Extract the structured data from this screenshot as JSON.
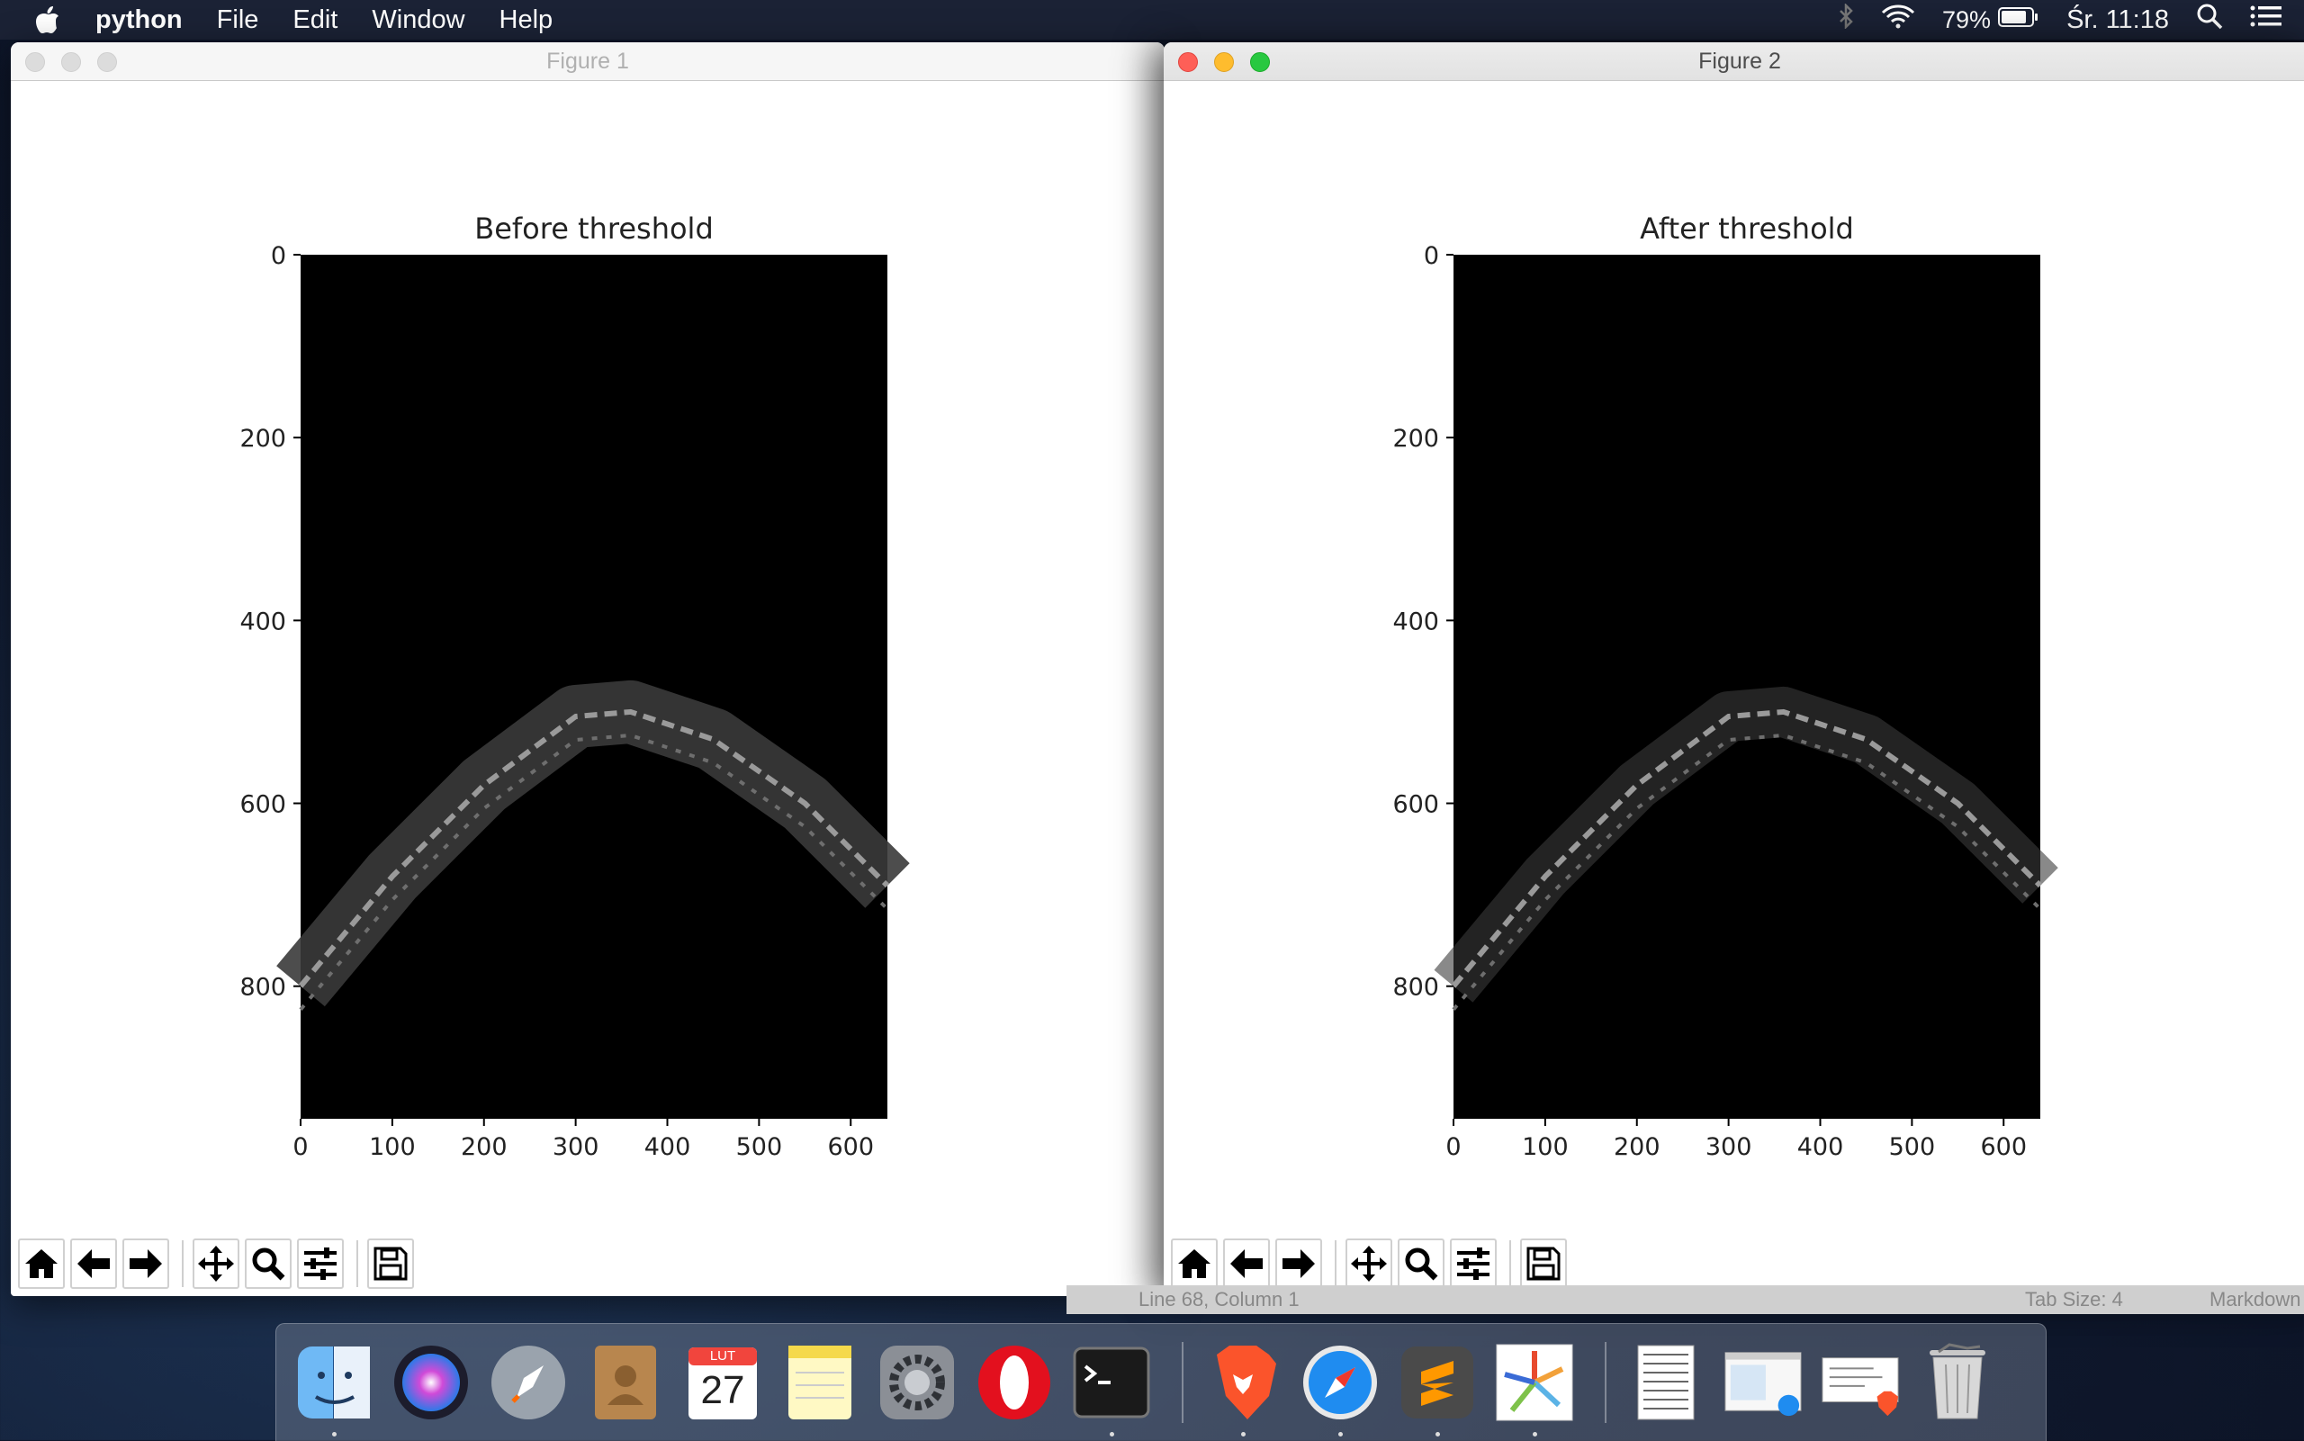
{
  "menubar": {
    "app_name": "python",
    "menus": [
      "File",
      "Edit",
      "Window",
      "Help"
    ],
    "battery": "79%",
    "clock": "Śr. 11:18"
  },
  "windows": [
    {
      "title": "Figure 1",
      "plot_title": "Before threshold",
      "state": "inactive"
    },
    {
      "title": "Figure 2",
      "plot_title": "After threshold",
      "state": "active"
    }
  ],
  "toolbar": {
    "buttons": [
      "home-icon",
      "back-icon",
      "forward-icon",
      "pan-icon",
      "zoom-icon",
      "configure-subplots-icon",
      "save-icon"
    ]
  },
  "behind_window_status": {
    "left": "Line 68, Column 1",
    "tab_size": "Tab Size: 4",
    "syntax": "Markdown"
  },
  "dock": {
    "calendar_month": "LUT",
    "calendar_day": "27",
    "apps": [
      "finder",
      "siri",
      "launchpad",
      "contacts",
      "calendar",
      "notes",
      "system-preferences",
      "opera",
      "terminal",
      "brave",
      "safari",
      "sublime-text",
      "python-app",
      "document-thumb-1",
      "document-thumb-2",
      "document-thumb-3",
      "trash"
    ]
  },
  "chart_data": [
    {
      "type": "image",
      "title": "Before threshold",
      "xticks": [
        0,
        100,
        200,
        300,
        400,
        500,
        600
      ],
      "yticks": [
        0,
        200,
        400,
        600,
        800
      ],
      "xlim": [
        0,
        640
      ],
      "ylim": [
        945,
        0
      ],
      "description_curve_points": [
        [
          0,
          800
        ],
        [
          100,
          680
        ],
        [
          200,
          580
        ],
        [
          300,
          505
        ],
        [
          360,
          500
        ],
        [
          450,
          530
        ],
        [
          550,
          600
        ],
        [
          640,
          690
        ]
      ]
    },
    {
      "type": "image",
      "title": "After threshold",
      "xticks": [
        0,
        100,
        200,
        300,
        400,
        500,
        600
      ],
      "yticks": [
        0,
        200,
        400,
        600,
        800
      ],
      "xlim": [
        0,
        640
      ],
      "ylim": [
        945,
        0
      ],
      "description_curve_points": [
        [
          0,
          800
        ],
        [
          100,
          680
        ],
        [
          200,
          580
        ],
        [
          300,
          505
        ],
        [
          360,
          500
        ],
        [
          450,
          530
        ],
        [
          550,
          600
        ],
        [
          640,
          690
        ]
      ]
    }
  ]
}
